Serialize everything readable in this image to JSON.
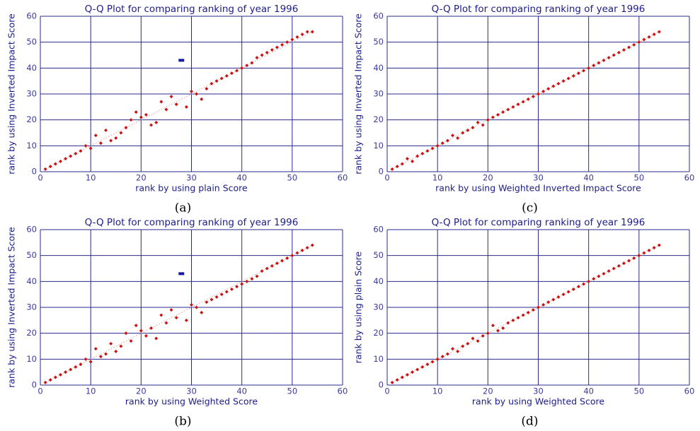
{
  "chart_data": [
    {
      "type": "scatter",
      "title": "Q-Q Plot for comparing ranking of year 1996",
      "x_label": "rank by using plain Score",
      "y_label": "rank by using Inverted Impact Score",
      "caption": "(a)",
      "color": "#cc1111",
      "highlight_index": 27,
      "highlight_color": "#1a1aa0",
      "x": [
        1,
        2,
        3,
        4,
        5,
        6,
        7,
        8,
        9,
        10,
        11,
        12,
        13,
        14,
        15,
        16,
        17,
        18,
        19,
        20,
        21,
        22,
        23,
        24,
        25,
        26,
        27,
        28,
        29,
        30,
        31,
        32,
        33,
        34,
        35,
        36,
        37,
        38,
        39,
        40,
        41,
        42,
        43,
        44,
        45,
        46,
        47,
        48,
        49,
        50,
        51,
        52,
        53,
        54
      ],
      "values": [
        1,
        2,
        3,
        4,
        5,
        6,
        7,
        8,
        10,
        9,
        14,
        11,
        16,
        12,
        13,
        15,
        17,
        20,
        23,
        21,
        22,
        18,
        19,
        27,
        24,
        29,
        26,
        43,
        25,
        31,
        30,
        28,
        32,
        34,
        35,
        36,
        37,
        38,
        39,
        40,
        41,
        42,
        44,
        45,
        46,
        47,
        48,
        49,
        50,
        51,
        52,
        53,
        54,
        54
      ],
      "xlim": [
        0,
        60
      ],
      "ylim": [
        0,
        60
      ],
      "xticks": [
        0,
        10,
        20,
        30,
        40,
        50,
        60
      ],
      "yticks": [
        0,
        10,
        20,
        30,
        40,
        50,
        60
      ],
      "grid": true
    },
    {
      "type": "scatter",
      "title": "Q-Q Plot for comparing ranking of year 1996",
      "x_label": "rank by using Weighted Score",
      "y_label": "rank by using Inverted Impact Score",
      "caption": "(b)",
      "color": "#cc1111",
      "highlight_index": 27,
      "highlight_color": "#1a1aa0",
      "x": [
        1,
        2,
        3,
        4,
        5,
        6,
        7,
        8,
        9,
        10,
        11,
        12,
        13,
        14,
        15,
        16,
        17,
        18,
        19,
        20,
        21,
        22,
        23,
        24,
        25,
        26,
        27,
        28,
        29,
        30,
        31,
        32,
        33,
        34,
        35,
        36,
        37,
        38,
        39,
        40,
        41,
        42,
        43,
        44,
        45,
        46,
        47,
        48,
        49,
        50,
        51,
        52,
        53,
        54
      ],
      "values": [
        1,
        2,
        3,
        4,
        5,
        6,
        7,
        8,
        10,
        9,
        14,
        11,
        12,
        16,
        13,
        15,
        20,
        17,
        23,
        21,
        19,
        22,
        18,
        27,
        24,
        29,
        26,
        43,
        25,
        31,
        30,
        28,
        32,
        33,
        34,
        35,
        36,
        37,
        38,
        39,
        40,
        41,
        42,
        44,
        45,
        46,
        47,
        48,
        49,
        50,
        51,
        52,
        53,
        54
      ],
      "xlim": [
        0,
        60
      ],
      "ylim": [
        0,
        60
      ],
      "xticks": [
        0,
        10,
        20,
        30,
        40,
        50,
        60
      ],
      "yticks": [
        0,
        10,
        20,
        30,
        40,
        50,
        60
      ],
      "grid": true
    },
    {
      "type": "scatter",
      "title": "Q-Q Plot for comparing ranking of year 1996",
      "x_label": "rank by using Weighted Inverted Impact Score",
      "y_label": "rank by using Inverted Impact Score",
      "caption": "(c)",
      "color": "#cc1111",
      "x": [
        1,
        2,
        3,
        4,
        5,
        6,
        7,
        8,
        9,
        10,
        11,
        12,
        13,
        14,
        15,
        16,
        17,
        18,
        19,
        20,
        21,
        22,
        23,
        24,
        25,
        26,
        27,
        28,
        29,
        30,
        31,
        32,
        33,
        34,
        35,
        36,
        37,
        38,
        39,
        40,
        41,
        42,
        43,
        44,
        45,
        46,
        47,
        48,
        49,
        50,
        51,
        52,
        53,
        54
      ],
      "values": [
        1,
        2,
        3,
        5,
        4,
        6,
        7,
        8,
        9,
        10,
        11,
        12,
        14,
        13,
        15,
        16,
        17,
        19,
        18,
        20,
        21,
        22,
        23,
        24,
        25,
        26,
        27,
        28,
        29,
        30,
        31,
        32,
        33,
        34,
        35,
        36,
        37,
        38,
        39,
        40,
        41,
        42,
        43,
        44,
        45,
        46,
        47,
        48,
        49,
        50,
        51,
        52,
        53,
        54
      ],
      "xlim": [
        0,
        60
      ],
      "ylim": [
        0,
        60
      ],
      "xticks": [
        0,
        10,
        20,
        30,
        40,
        50,
        60
      ],
      "yticks": [
        0,
        10,
        20,
        30,
        40,
        50,
        60
      ],
      "grid": true
    },
    {
      "type": "scatter",
      "title": "Q-Q Plot for comparing ranking of year 1996",
      "x_label": "rank by using Weighted Score",
      "y_label": "rank by using plain Score",
      "caption": "(d)",
      "color": "#cc1111",
      "x": [
        1,
        2,
        3,
        4,
        5,
        6,
        7,
        8,
        9,
        10,
        11,
        12,
        13,
        14,
        15,
        16,
        17,
        18,
        19,
        20,
        21,
        22,
        23,
        24,
        25,
        26,
        27,
        28,
        29,
        30,
        31,
        32,
        33,
        34,
        35,
        36,
        37,
        38,
        39,
        40,
        41,
        42,
        43,
        44,
        45,
        46,
        47,
        48,
        49,
        50,
        51,
        52,
        53,
        54
      ],
      "values": [
        1,
        2,
        3,
        4,
        5,
        6,
        7,
        8,
        9,
        10,
        11,
        12,
        14,
        13,
        15,
        16,
        18,
        17,
        19,
        20,
        23,
        21,
        22,
        24,
        25,
        26,
        27,
        28,
        29,
        30,
        31,
        32,
        33,
        34,
        35,
        36,
        37,
        38,
        39,
        40,
        41,
        42,
        43,
        44,
        45,
        46,
        47,
        48,
        49,
        50,
        51,
        52,
        53,
        54
      ],
      "xlim": [
        0,
        60
      ],
      "ylim": [
        0,
        60
      ],
      "xticks": [
        0,
        10,
        20,
        30,
        40,
        50,
        60
      ],
      "yticks": [
        0,
        10,
        20,
        30,
        40,
        50,
        60
      ],
      "grid": true
    }
  ]
}
